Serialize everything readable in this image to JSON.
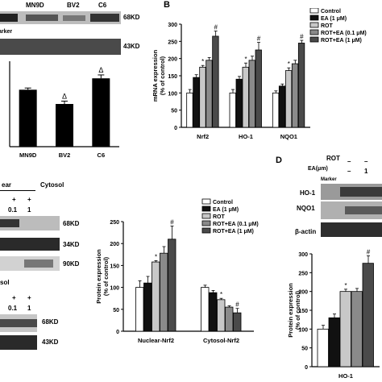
{
  "panel_a": {
    "cells": [
      "MN9D",
      "BV2",
      "C6"
    ],
    "marker_label": "arker",
    "blot_labels": [
      "68KD",
      "43KD"
    ]
  },
  "panel_b": {
    "letter": "B"
  },
  "panel_c": {
    "header": [
      "ear",
      "Cytosol"
    ],
    "row1_plus": [
      "+",
      "+"
    ],
    "row1_vals": [
      "0.1",
      "1"
    ],
    "blot_labels_top": [
      "68KD",
      "34KD",
      "90KD"
    ],
    "cytosol_label": "sol",
    "row2_plus": [
      "+",
      "+"
    ],
    "row2_vals": [
      "0.1",
      "1"
    ],
    "blot_labels_bottom": [
      "68KD",
      "43KD"
    ]
  },
  "panel_d": {
    "letter": "D",
    "rot_label": "ROT",
    "ea_label": "EA(μm)",
    "marker_label": "Marker",
    "col_marks": [
      "–",
      "–"
    ],
    "col_values": [
      "–",
      "1"
    ],
    "blot_labels": [
      "HO-1",
      "NQO1",
      "β-actin"
    ]
  },
  "legend_b": [
    "Control",
    "EA (1 μM)",
    "ROT",
    "ROT+EA (0.1 μM)",
    "ROT+EA (1 μM)"
  ],
  "legend_c": [
    "Control",
    "EA (1 μM)",
    "ROT",
    "ROT+EA (0.1 μM)",
    "ROT+EA (1 μM)"
  ],
  "colors": {
    "control": "#ffffff",
    "ea": "#111111",
    "rot": "#c8c8c8",
    "rot_ea_low": "#8a8a8a",
    "rot_ea_high": "#4a4a4a"
  },
  "chart_data": [
    {
      "id": "a",
      "type": "bar",
      "categories": [
        "MN9D",
        "BV2",
        "C6"
      ],
      "values": [
        100,
        75,
        120
      ],
      "errors": [
        3,
        5,
        6
      ],
      "annotations": [
        "",
        "Δ",
        "Δ"
      ],
      "ylim": [
        0,
        150
      ]
    },
    {
      "id": "b",
      "type": "bar",
      "categories": [
        "Nrf2",
        "HO-1",
        "NQO1"
      ],
      "series": [
        {
          "name": "Control",
          "values": [
            100,
            100,
            100
          ],
          "errors": [
            10,
            10,
            6
          ]
        },
        {
          "name": "EA (1 μM)",
          "values": [
            145,
            140,
            120
          ],
          "errors": [
            8,
            8,
            6
          ]
        },
        {
          "name": "ROT",
          "values": [
            175,
            175,
            165
          ],
          "errors": [
            5,
            12,
            8
          ]
        },
        {
          "name": "ROT+EA (0.1 μM)",
          "values": [
            195,
            195,
            185
          ],
          "errors": [
            8,
            12,
            10
          ]
        },
        {
          "name": "ROT+EA (1 μM)",
          "values": [
            265,
            225,
            245
          ],
          "errors": [
            15,
            22,
            8
          ]
        }
      ],
      "annotations": [
        [
          "",
          "",
          "*",
          "",
          "#"
        ],
        [
          "",
          "",
          "*",
          "",
          "#"
        ],
        [
          "",
          "",
          "*",
          "",
          "#"
        ]
      ],
      "ylabel": "mRNA expression\n(% of control)",
      "yticks": [
        0,
        50,
        100,
        150,
        200,
        250,
        300
      ],
      "ylim": [
        0,
        300
      ]
    },
    {
      "id": "c",
      "type": "bar",
      "categories": [
        "Nuclear-Nrf2",
        "Cytosol-Nrf2"
      ],
      "series": [
        {
          "name": "Control",
          "values": [
            100,
            100
          ],
          "errors": [
            15,
            5
          ]
        },
        {
          "name": "EA (1 μM)",
          "values": [
            110,
            88
          ],
          "errors": [
            15,
            5
          ]
        },
        {
          "name": "ROT",
          "values": [
            158,
            72
          ],
          "errors": [
            3,
            3
          ]
        },
        {
          "name": "ROT+EA (0.1 μM)",
          "values": [
            178,
            55
          ],
          "errors": [
            15,
            3
          ]
        },
        {
          "name": "ROT+EA (1 μM)",
          "values": [
            210,
            42
          ],
          "errors": [
            30,
            10
          ]
        }
      ],
      "annotations": [
        [
          "",
          "",
          "*",
          "",
          "#"
        ],
        [
          "",
          "",
          "*",
          "",
          "#"
        ]
      ],
      "ylabel": "Protein expression\n(% of control)",
      "yticks": [
        0,
        50,
        100,
        150,
        200,
        250
      ],
      "ylim": [
        0,
        250
      ]
    },
    {
      "id": "d",
      "type": "bar",
      "categories": [
        "HO-1"
      ],
      "series": [
        {
          "name": "Control",
          "values": [
            100
          ],
          "errors": [
            10
          ]
        },
        {
          "name": "EA (1 μM)",
          "values": [
            130
          ],
          "errors": [
            10
          ]
        },
        {
          "name": "ROT",
          "values": [
            200
          ],
          "errors": [
            6
          ]
        },
        {
          "name": "ROT+EA (0.1 μM)",
          "values": [
            200
          ],
          "errors": [
            8
          ]
        },
        {
          "name": "ROT+EA (1 μM)",
          "values": [
            275
          ],
          "errors": [
            20
          ]
        }
      ],
      "annotations": [
        [
          "",
          "",
          "*",
          "",
          "#"
        ]
      ],
      "ylabel": "Protein expression\n(% of control)",
      "yticks": [
        0,
        50,
        100,
        150,
        200,
        250,
        300
      ],
      "ylim": [
        0,
        300
      ]
    }
  ]
}
